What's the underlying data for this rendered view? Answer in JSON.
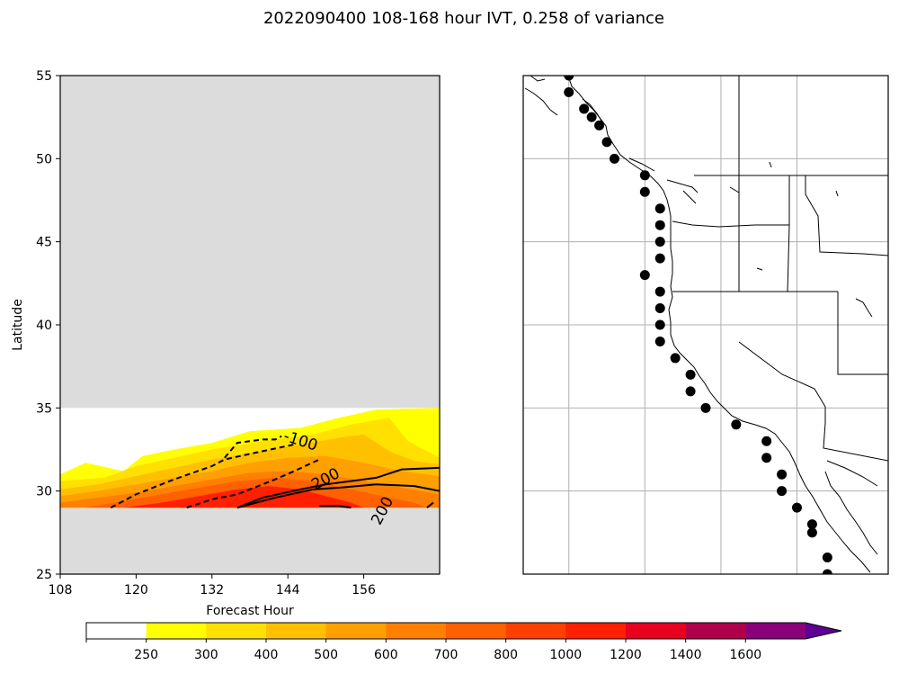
{
  "title": "2022090400 108-168 hour IVT, 0.258 of variance",
  "chart_data": [
    {
      "type": "contour",
      "xlabel": "Forecast Hour",
      "ylabel": "Latitude",
      "xlim": [
        108,
        168
      ],
      "ylim": [
        25,
        55
      ],
      "xticks": [
        "108",
        "120",
        "132",
        "144",
        "156"
      ],
      "yticks": [
        "25",
        "30",
        "35",
        "40",
        "45",
        "50",
        "55"
      ],
      "masked_color": "#dcdcdc",
      "data_lat_range": [
        29,
        35
      ],
      "filled_bands": [
        {
          "min": 250,
          "color": "#ffff00",
          "boundary": [
            [
              108,
              31
            ],
            [
              112,
              31.7
            ],
            [
              118,
              31.2
            ],
            [
              121,
              32.1
            ],
            [
              126,
              32.5
            ],
            [
              132,
              32.9
            ],
            [
              138,
              33.6
            ],
            [
              146,
              33.8
            ],
            [
              152,
              34.4
            ],
            [
              158,
              34.9
            ],
            [
              168,
              35
            ]
          ]
        },
        {
          "min": 300,
          "color": "#ffe000",
          "boundary": [
            [
              108,
              30.6
            ],
            [
              115,
              30.8
            ],
            [
              120,
              31.5
            ],
            [
              126,
              32.0
            ],
            [
              132,
              32.5
            ],
            [
              140,
              33.0
            ],
            [
              148,
              33.4
            ],
            [
              154,
              34.0
            ],
            [
              160,
              34.4
            ],
            [
              163,
              33.0
            ],
            [
              168,
              32.0
            ]
          ]
        },
        {
          "min": 400,
          "color": "#ffc000",
          "boundary": [
            [
              108,
              30.1
            ],
            [
              114,
              30.4
            ],
            [
              120,
              30.9
            ],
            [
              126,
              31.4
            ],
            [
              132,
              31.9
            ],
            [
              140,
              32.4
            ],
            [
              146,
              32.8
            ],
            [
              152,
              33.2
            ],
            [
              156,
              33.4
            ],
            [
              160,
              32.4
            ],
            [
              164,
              31.8
            ],
            [
              168,
              31.6
            ]
          ]
        },
        {
          "min": 500,
          "color": "#ffa000",
          "boundary": [
            [
              108,
              29.7
            ],
            [
              114,
              30.0
            ],
            [
              120,
              30.4
            ],
            [
              126,
              30.8
            ],
            [
              132,
              31.2
            ],
            [
              138,
              31.7
            ],
            [
              144,
              32.0
            ],
            [
              150,
              32.1
            ],
            [
              156,
              31.7
            ],
            [
              162,
              31.2
            ],
            [
              168,
              30.9
            ]
          ]
        },
        {
          "min": 600,
          "color": "#ff8000",
          "boundary": [
            [
              108,
              29.3
            ],
            [
              114,
              29.6
            ],
            [
              120,
              29.9
            ],
            [
              126,
              30.3
            ],
            [
              132,
              30.7
            ],
            [
              138,
              31.1
            ],
            [
              144,
              31.2
            ],
            [
              150,
              31.0
            ],
            [
              156,
              30.6
            ],
            [
              162,
              30.2
            ],
            [
              168,
              29.8
            ]
          ]
        },
        {
          "min": 700,
          "color": "#ff6000",
          "boundary": [
            [
              112,
              29.0
            ],
            [
              118,
              29.4
            ],
            [
              124,
              29.8
            ],
            [
              130,
              30.2
            ],
            [
              136,
              30.6
            ],
            [
              142,
              30.8
            ],
            [
              148,
              30.6
            ],
            [
              154,
              30.1
            ],
            [
              160,
              29.6
            ],
            [
              164,
              29.3
            ],
            [
              166,
              29.0
            ]
          ]
        },
        {
          "min": 800,
          "color": "#ff2000",
          "boundary": [
            [
              118,
              29.0
            ],
            [
              124,
              29.3
            ],
            [
              130,
              29.7
            ],
            [
              136,
              30.1
            ],
            [
              141,
              30.3
            ],
            [
              146,
              30.1
            ],
            [
              150,
              29.7
            ],
            [
              154,
              29.3
            ],
            [
              156,
              29.0
            ]
          ]
        }
      ],
      "contours": [
        {
          "level": -100,
          "label": "-100",
          "style": "dashed",
          "points": [
            [
              116,
              29
            ],
            [
              120,
              29.8
            ],
            [
              126,
              30.7
            ],
            [
              132,
              31.5
            ],
            [
              134,
              31.9
            ],
            [
              140,
              32.4
            ],
            [
              145,
              32.8
            ]
          ]
        },
        {
          "level": -100,
          "label": "",
          "style": "dashed",
          "points": [
            [
              128,
              29
            ],
            [
              132,
              29.5
            ],
            [
              136,
              29.8
            ],
            [
              142,
              30.7
            ],
            [
              145,
              31.2
            ],
            [
              149,
              31.9
            ]
          ]
        },
        {
          "level": -100,
          "label": "",
          "style": "dashed",
          "points": [
            [
              134,
              32.0
            ],
            [
              136,
              32.9
            ],
            [
              140,
              33.1
            ],
            [
              142,
              33.1
            ],
            [
              143,
              33.3
            ]
          ]
        },
        {
          "level": 200,
          "label": "200",
          "style": "solid",
          "points": [
            [
              136,
              29
            ],
            [
              140,
              29.6
            ],
            [
              146,
              30.1
            ],
            [
              150,
              30.4
            ],
            [
              158,
              30.8
            ],
            [
              162,
              31.3
            ],
            [
              168,
              31.4
            ]
          ]
        },
        {
          "level": 200,
          "label": "200",
          "style": "solid",
          "points": [
            [
              136,
              29
            ],
            [
              142,
              29.6
            ],
            [
              148,
              30.1
            ],
            [
              152,
              30.2
            ],
            [
              158,
              30.4
            ],
            [
              164,
              30.3
            ],
            [
              168,
              30.0
            ]
          ]
        },
        {
          "level": 200,
          "label": "",
          "style": "solid",
          "points": [
            [
              149,
              29.1
            ],
            [
              152,
              29.1
            ],
            [
              154,
              29.0
            ]
          ]
        },
        {
          "level": 200,
          "label": "",
          "style": "solid",
          "points": [
            [
              166,
              29.0
            ],
            [
              167,
              29.3
            ]
          ]
        }
      ],
      "contour_labels": [
        {
          "text": "-100",
          "at": [
            146,
            33
          ],
          "angle": 18
        },
        {
          "text": "200",
          "at": [
            150,
            30.7
          ],
          "angle": -28
        },
        {
          "text": "200",
          "at": [
            159,
            28.8
          ],
          "angle": -62
        }
      ]
    },
    {
      "type": "map",
      "region": "US West Coast",
      "lon_range": [
        -134,
        -110
      ],
      "lat_range": [
        25,
        55
      ],
      "gridlines": {
        "lon": [
          -131,
          -126,
          -121,
          -116
        ],
        "lat": [
          30,
          35,
          40,
          45,
          50
        ]
      },
      "points": [
        [
          -131,
          55
        ],
        [
          -131,
          54
        ],
        [
          -130,
          53
        ],
        [
          -129.5,
          52.5
        ],
        [
          -129,
          52
        ],
        [
          -128.5,
          51
        ],
        [
          -128,
          50
        ],
        [
          -126,
          49
        ],
        [
          -126,
          48
        ],
        [
          -125,
          47
        ],
        [
          -125,
          46
        ],
        [
          -125,
          45
        ],
        [
          -125,
          44
        ],
        [
          -126,
          43
        ],
        [
          -125,
          42
        ],
        [
          -125,
          41
        ],
        [
          -125,
          40
        ],
        [
          -125,
          39
        ],
        [
          -124,
          38
        ],
        [
          -123,
          37
        ],
        [
          -123,
          36
        ],
        [
          -122,
          35
        ],
        [
          -120,
          34
        ],
        [
          -118,
          33
        ],
        [
          -118,
          32
        ],
        [
          -117,
          31
        ],
        [
          -117,
          30
        ],
        [
          -116,
          29
        ],
        [
          -115,
          28
        ],
        [
          -115,
          27.5
        ],
        [
          -114,
          26
        ],
        [
          -114,
          25
        ]
      ]
    },
    {
      "type": "colorbar",
      "orientation": "horizontal",
      "extend": "max",
      "ticks": [
        "250",
        "300",
        "400",
        "500",
        "600",
        "700",
        "800",
        "1000",
        "1200",
        "1400",
        "1600"
      ],
      "colors": [
        "#ffffff",
        "#ffff00",
        "#ffe000",
        "#ffc000",
        "#ffa000",
        "#ff8000",
        "#ff6000",
        "#ff4000",
        "#ff2000",
        "#e8001e",
        "#b0004a",
        "#8a007a",
        "#5e0096"
      ]
    }
  ]
}
